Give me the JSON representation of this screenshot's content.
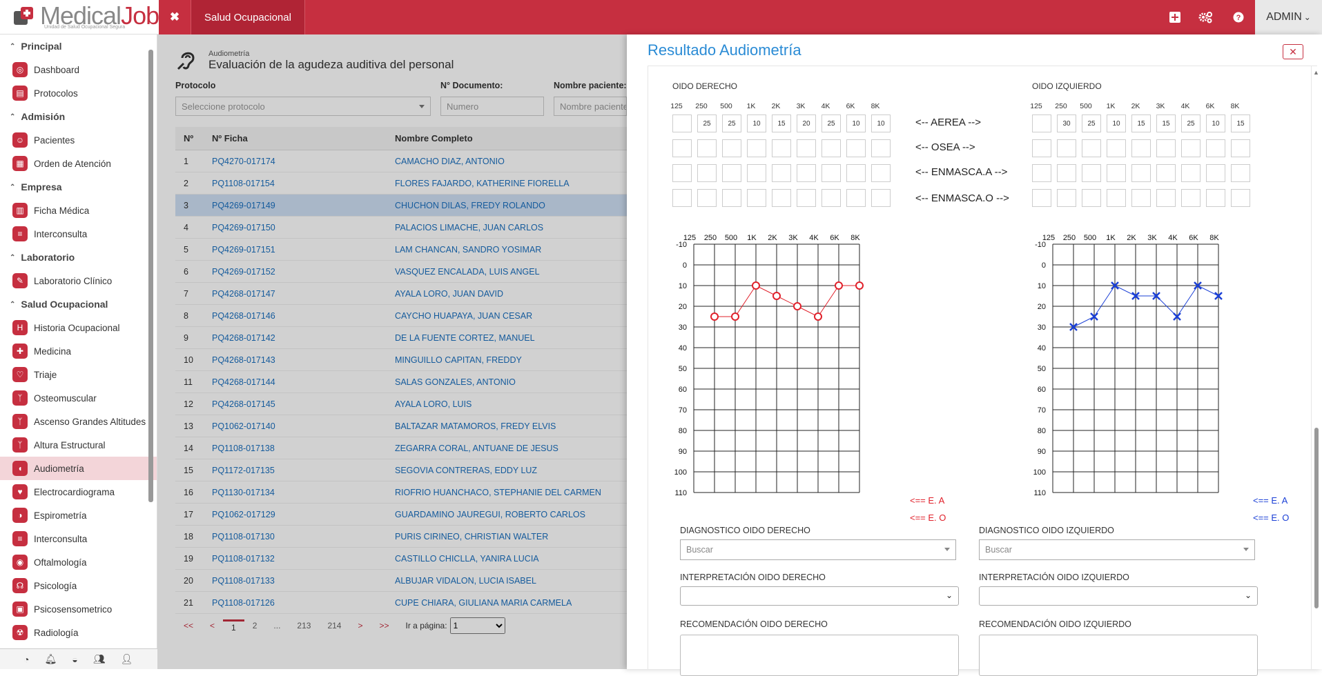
{
  "topbar": {
    "brand_a": "Medical",
    "brand_b": "Job",
    "brand_tagline": "Unidad de Salud Ocupacional Segura",
    "close_icon": "✖",
    "module": "Salud Ocupacional",
    "user": "ADMIN",
    "caret": "⌄",
    "icons": {
      "add": "plus-square-icon",
      "settings": "gears-icon",
      "help": "question-icon"
    }
  },
  "sidebar": {
    "sections": [
      {
        "title": "Principal",
        "items": [
          "Dashboard",
          "Protocolos"
        ]
      },
      {
        "title": "Admisión",
        "items": [
          "Pacientes",
          "Orden de Atención"
        ]
      },
      {
        "title": "Empresa",
        "items": [
          "Ficha Médica",
          "Interconsulta"
        ]
      },
      {
        "title": "Laboratorio",
        "items": [
          "Laboratorio Clínico"
        ]
      },
      {
        "title": "Salud Ocupacional",
        "items": [
          "Historia Ocupacional",
          "Medicina",
          "Triaje",
          "Osteomuscular",
          "Ascenso Grandes Altitudes",
          "Altura Estructural",
          "Audiometría",
          "Electrocardiograma",
          "Espirometría",
          "Interconsulta",
          "Oftalmología",
          "Psicología",
          "Psicosensometrico",
          "Radiología"
        ]
      }
    ],
    "active": "Audiometría"
  },
  "page": {
    "small": "Audiometría",
    "title": "Evaluación de la agudeza auditiva del personal",
    "filters": {
      "protocol_label": "Protocolo",
      "protocol_placeholder": "Seleccione protocolo",
      "doc_label": "N° Documento:",
      "doc_placeholder": "Numero",
      "name_label": "Nombre paciente:",
      "name_placeholder": "Nombre paciente"
    }
  },
  "table": {
    "headers": [
      "Nº",
      "Nº Ficha",
      "Nombre Completo"
    ],
    "rows": [
      [
        "1",
        "PQ4270-017174",
        "CAMACHO DIAZ, ANTONIO"
      ],
      [
        "2",
        "PQ1108-017154",
        "FLORES FAJARDO, KATHERINE FIORELLA"
      ],
      [
        "3",
        "PQ4269-017149",
        "CHUCHON DILAS, FREDY ROLANDO"
      ],
      [
        "4",
        "PQ4269-017150",
        "PALACIOS LIMACHE, JUAN CARLOS"
      ],
      [
        "5",
        "PQ4269-017151",
        "LAM CHANCAN, SANDRO YOSIMAR"
      ],
      [
        "6",
        "PQ4269-017152",
        "VASQUEZ ENCALADA, LUIS ANGEL"
      ],
      [
        "7",
        "PQ4268-017147",
        "AYALA LORO, JUAN DAVID"
      ],
      [
        "8",
        "PQ4268-017146",
        "CAYCHO HUAPAYA, JUAN CESAR"
      ],
      [
        "9",
        "PQ4268-017142",
        "DE LA FUENTE CORTEZ, MANUEL"
      ],
      [
        "10",
        "PQ4268-017143",
        "MINGUILLO CAPITAN, FREDDY"
      ],
      [
        "11",
        "PQ4268-017144",
        "SALAS GONZALES, ANTONIO"
      ],
      [
        "12",
        "PQ4268-017145",
        "AYALA LORO, LUIS"
      ],
      [
        "13",
        "PQ1062-017140",
        "BALTAZAR MATAMOROS, FREDY ELVIS"
      ],
      [
        "14",
        "PQ1108-017138",
        "ZEGARRA CORAL, ANTUANE DE JESUS"
      ],
      [
        "15",
        "PQ1172-017135",
        "SEGOVIA CONTRERAS, EDDY LUZ"
      ],
      [
        "16",
        "PQ1130-017134",
        "RIOFRIO HUANCHACO, STEPHANIE DEL CARMEN"
      ],
      [
        "17",
        "PQ1062-017129",
        "GUARDAMINO JAUREGUI, ROBERTO CARLOS"
      ],
      [
        "18",
        "PQ1108-017130",
        "PURIS CIRINEO, CHRISTIAN WALTER"
      ],
      [
        "19",
        "PQ1108-017132",
        "CASTILLO CHICLLA, YANIRA LUCIA"
      ],
      [
        "20",
        "PQ1108-017133",
        "ALBUJAR VIDALON, LUCIA ISABEL"
      ],
      [
        "21",
        "PQ1108-017126",
        "CUPE CHIARA, GIULIANA MARIA CARMELA"
      ]
    ],
    "selected_row": 3
  },
  "pager": {
    "first": "<<",
    "prev": "<",
    "p1": "1",
    "p2": "2",
    "dots": "...",
    "p213": "213",
    "p214": "214",
    "next": ">",
    "last": ">>",
    "goto_label": "Ir a página:",
    "goto_value": "1"
  },
  "panel": {
    "title": "Resultado Audiometría",
    "close": "✕",
    "right_ear_title": "OIDO DERECHO",
    "left_ear_title": "OIDO IZQUIERDO",
    "frequencies": [
      "125",
      "250",
      "500",
      "1K",
      "2K",
      "3K",
      "4K",
      "6K",
      "8K"
    ],
    "rows_labels": [
      "<-- AEREA -->",
      "<-- OSEA -->",
      "<-- ENMASCA.A -->",
      "<-- ENMASCA.O -->"
    ],
    "right_aerea": [
      "",
      "25",
      "25",
      "10",
      "15",
      "20",
      "25",
      "10",
      "10"
    ],
    "left_aerea": [
      "",
      "30",
      "25",
      "10",
      "15",
      "15",
      "25",
      "10",
      "15"
    ],
    "y_ticks": [
      "-10",
      "0",
      "10",
      "20",
      "30",
      "40",
      "50",
      "60",
      "70",
      "80",
      "90",
      "100",
      "110"
    ],
    "legend_ea": "<== E. A",
    "legend_eo": "<== E. O",
    "colors": {
      "right": "#e0202a",
      "left": "#1a3fd6"
    },
    "diag_right_label": "DIAGNOSTICO OIDO DERECHO",
    "diag_left_label": "DIAGNOSTICO OIDO IZQUIERDO",
    "search_placeholder": "Buscar",
    "interp_right_label": "INTERPRETACIÓN OIDO DERECHO",
    "interp_left_label": "INTERPRETACIÓN OIDO IZQUIERDO",
    "rec_right_label": "RECOMENDACIÓN OIDO DERECHO",
    "rec_left_label": "RECOMENDACIÓN OIDO IZQUIERDO"
  },
  "chart_data": [
    {
      "type": "line",
      "x": [
        "125",
        "250",
        "500",
        "1K",
        "2K",
        "3K",
        "4K",
        "6K",
        "8K"
      ],
      "series": [
        {
          "values": [
            null,
            25,
            25,
            10,
            15,
            20,
            25,
            10,
            10
          ],
          "marker": "o",
          "color": "#e0202a"
        }
      ],
      "ylim": [
        -10,
        110
      ],
      "yaxis": "inverted",
      "grid": true
    },
    {
      "type": "line",
      "x": [
        "125",
        "250",
        "500",
        "1K",
        "2K",
        "3K",
        "4K",
        "6K",
        "8K"
      ],
      "series": [
        {
          "values": [
            null,
            30,
            25,
            10,
            15,
            15,
            25,
            10,
            15
          ],
          "marker": "x",
          "color": "#1a3fd6"
        }
      ],
      "ylim": [
        -10,
        110
      ],
      "yaxis": "inverted",
      "grid": true
    }
  ]
}
